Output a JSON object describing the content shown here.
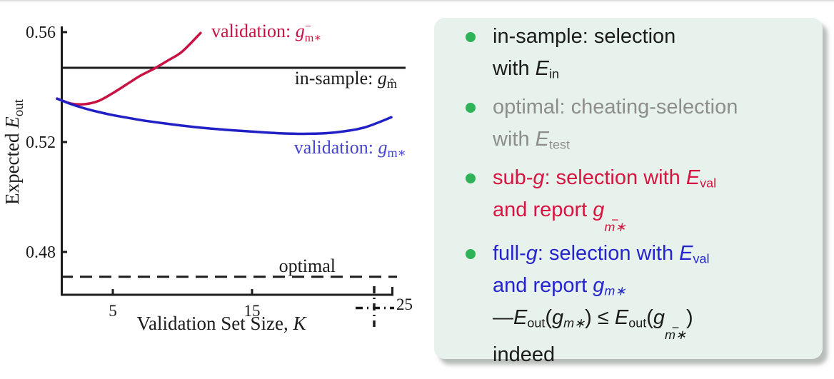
{
  "chart": {
    "y_axis_label": {
      "prefix": "Expected ",
      "E": "E",
      "sub": "out"
    },
    "x_axis_label": {
      "prefix": "Validation Set Size, ",
      "var": "K"
    },
    "y_ticks": {
      "t056": "0.56",
      "t052": "0.52",
      "t048": "0.48"
    },
    "x_ticks": {
      "t5": "5",
      "t15": "15",
      "t25": "25"
    },
    "labels": {
      "red": {
        "prefix": "validation: ",
        "g": "g",
        "sup": "−",
        "sub": "m∗"
      },
      "black": {
        "prefix": "in-sample: ",
        "g": "g",
        "sub": "m̂"
      },
      "blue": {
        "prefix": "validation: ",
        "g": "g",
        "sub": "m∗"
      },
      "optimal": "optimal"
    },
    "colors": {
      "red": "#c81243",
      "blue": "#2020c4",
      "red_label": "#c81243",
      "blue_label": "#4646d2",
      "black": "#1c1c1c"
    }
  },
  "chart_data": {
    "type": "line",
    "title": "",
    "xlabel": "Validation Set Size, K",
    "ylabel": "Expected E_out",
    "xlim": [
      1,
      25
    ],
    "ylim": [
      0.463,
      0.562
    ],
    "x_ticks": [
      5,
      15,
      25
    ],
    "y_ticks": [
      0.48,
      0.52,
      0.56
    ],
    "grid": false,
    "legend_position": "inline-annotations",
    "series": [
      {
        "key": "in_sample",
        "name": "in-sample: g_m̂",
        "color": "#1c1c1c",
        "style": "solid-horizontal",
        "x": [
          1,
          25
        ],
        "y": [
          0.547,
          0.547
        ]
      },
      {
        "key": "optimal",
        "name": "optimal",
        "color": "#1c1c1c",
        "style": "dashed-horizontal",
        "x": [
          1,
          25
        ],
        "y": [
          0.471,
          0.471
        ]
      },
      {
        "key": "sub_g",
        "name": "validation: g⁻_m∗ (sub-g)",
        "color": "#c81243",
        "style": "solid",
        "x": [
          1,
          2,
          3,
          4,
          5,
          6,
          7,
          8,
          9,
          10,
          11.3
        ],
        "y": [
          0.5358,
          0.534,
          0.5338,
          0.535,
          0.5378,
          0.541,
          0.5442,
          0.5468,
          0.5498,
          0.553,
          0.5597
        ]
      },
      {
        "key": "full_g",
        "name": "validation: g_m∗ (full-g)",
        "color": "#2020c4",
        "style": "solid",
        "x": [
          1,
          2,
          3,
          4,
          5,
          7,
          9,
          11,
          13,
          15,
          17,
          19,
          21,
          23,
          25
        ],
        "y": [
          0.5358,
          0.5338,
          0.5322,
          0.5309,
          0.5298,
          0.528,
          0.5266,
          0.5254,
          0.5245,
          0.5238,
          0.5232,
          0.523,
          0.5235,
          0.5252,
          0.529
        ]
      }
    ],
    "annotations": {
      "cursor_marker": {
        "type": "dash-dot-crosshair",
        "x": 23.5,
        "near_tick": "25"
      }
    }
  },
  "panel": {
    "bullets": {
      "b1": {
        "l1": "in-sample: selection",
        "l2a": "with ",
        "l2E": "E",
        "l2sub": "in"
      },
      "b2": {
        "l1": "optimal: cheating-selection",
        "l2a": "with ",
        "l2E": "E",
        "l2sub": "test"
      },
      "b3": {
        "l1a": "sub-",
        "l1g": "g",
        "l1b": ": selection with ",
        "l1E": "E",
        "l1sub": "val",
        "l2a": "and report ",
        "l2g": "g",
        "l2bar": "−",
        "l2sub": "m∗"
      },
      "b4": {
        "l1a": "full-",
        "l1g": "g",
        "l1b": ": selection with ",
        "l1E": "E",
        "l1sub": "val",
        "l2a": "and report ",
        "l2g": "g",
        "l2sub": "m∗",
        "l3a": "—",
        "l3E1": "E",
        "l3s1": "out",
        "l3p1": "(",
        "l3g1": "g",
        "l3gs1": "m∗",
        "l3p2": ") ≤ ",
        "l3E2": "E",
        "l3s2": "out",
        "l3p3": "(",
        "l3g2": "g",
        "l3bar": "−",
        "l3gs2": "m∗",
        "l3p4": ")",
        "l4": "indeed"
      }
    },
    "bullet_color": "#2eb356",
    "panel_bg": "#e7f2ec"
  }
}
